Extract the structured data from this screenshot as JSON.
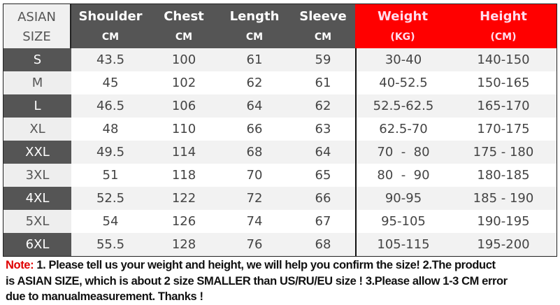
{
  "header": {
    "size": {
      "line1": "ASIAN",
      "line2": "SIZE"
    },
    "columns": [
      {
        "title": "Shoulder",
        "unit": "CM"
      },
      {
        "title": "Chest",
        "unit": "CM"
      },
      {
        "title": "Length",
        "unit": "CM"
      },
      {
        "title": "Sleeve",
        "unit": "CM"
      },
      {
        "title": "Weight",
        "unit": "(KG)"
      },
      {
        "title": "Height",
        "unit": "(CM)"
      }
    ]
  },
  "colors": {
    "header_dark": "#555555",
    "header_red": "#ff0000",
    "note_label": "#e00000"
  },
  "rows": [
    [
      "S",
      "43.5",
      "100",
      "61",
      "59",
      "30-40",
      "140-150"
    ],
    [
      "M",
      "45",
      "102",
      "62",
      "61",
      "40-52.5",
      "150-165"
    ],
    [
      "L",
      "46.5",
      "106",
      "64",
      "62",
      "52.5-62.5",
      "165-170"
    ],
    [
      "XL",
      "48",
      "110",
      "66",
      "63",
      "62.5-70",
      "170-175"
    ],
    [
      "XXL",
      "49.5",
      "114",
      "68",
      "64",
      "70  -  80",
      "175 - 180"
    ],
    [
      "3XL",
      "51",
      "118",
      "70",
      "65",
      "80  -  90",
      "180-185"
    ],
    [
      "4XL",
      "52.5",
      "122",
      "72",
      "66",
      "90-95",
      "185 - 190"
    ],
    [
      "5XL",
      "54",
      "126",
      "74",
      "67",
      "95-105",
      "190-195"
    ],
    [
      "6XL",
      "55.5",
      "128",
      "76",
      "68",
      "105-115",
      "195-200"
    ]
  ],
  "note": {
    "label": "Note:",
    "line1": " 1. Please tell us your weight and height, we will help you confirm the size!  2.The product",
    "line2": "is ASIAN SIZE, which is about 2 size SMALLER than US/RU/EU size ! 3.Please allow 1-3 CM error",
    "line3": "due to manualmeasurement.  Thanks !"
  }
}
